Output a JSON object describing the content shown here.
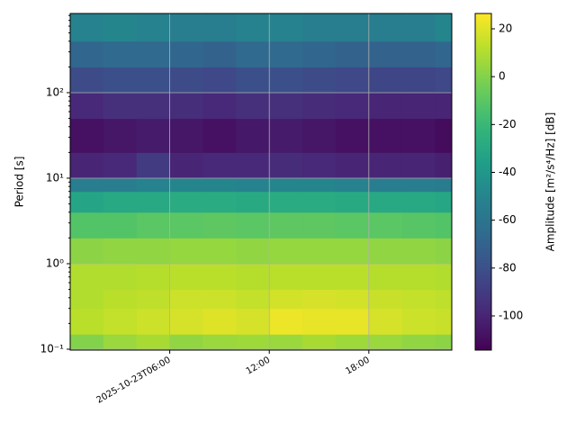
{
  "chart_data": {
    "type": "heatmap",
    "ylabel": "Period [s]",
    "colorbar_label": "Amplitude [m²/s⁴/Hz] [dB]",
    "colormap": "viridis",
    "xedges": [
      "2025-10-23T00:00",
      "2025-10-23T02:00",
      "2025-10-23T04:00",
      "2025-10-23T06:00",
      "2025-10-23T08:00",
      "2025-10-23T10:00",
      "2025-10-23T12:00",
      "2025-10-23T14:00",
      "2025-10-23T16:00",
      "2025-10-23T18:00",
      "2025-10-23T20:00",
      "2025-10-23T22:00",
      "2025-10-23T23:00"
    ],
    "yedges": [
      0.0976,
      0.15,
      0.3,
      0.5,
      1,
      2,
      4,
      7,
      10,
      20,
      50,
      100,
      200,
      400,
      843
    ],
    "values": [
      [
        0,
        5,
        8,
        3,
        5,
        6,
        5,
        8,
        6,
        5,
        3,
        2
      ],
      [
        12,
        14,
        16,
        18,
        20,
        18,
        23,
        22,
        22,
        18,
        16,
        15
      ],
      [
        10,
        12,
        13,
        16,
        16,
        14,
        17,
        18,
        17,
        15,
        14,
        13
      ],
      [
        10,
        10,
        11,
        12,
        12,
        11,
        12,
        12,
        12,
        11,
        11,
        10
      ],
      [
        2,
        3,
        3,
        4,
        4,
        3,
        4,
        4,
        4,
        3,
        3,
        2
      ],
      [
        -12,
        -12,
        -10,
        -10,
        -9,
        -10,
        -9,
        -9,
        -10,
        -10,
        -11,
        -12
      ],
      [
        -32,
        -30,
        -30,
        -28,
        -28,
        -29,
        -28,
        -28,
        -29,
        -30,
        -30,
        -31
      ],
      [
        -55,
        -55,
        -52,
        -50,
        -50,
        -52,
        -50,
        -50,
        -52,
        -54,
        -55,
        -56
      ],
      [
        -100,
        -98,
        -90,
        -100,
        -98,
        -98,
        -97,
        -98,
        -100,
        -100,
        -100,
        -102
      ],
      [
        -108,
        -106,
        -104,
        -106,
        -108,
        -105,
        -104,
        -106,
        -108,
        -108,
        -108,
        -110
      ],
      [
        -98,
        -95,
        -95,
        -96,
        -98,
        -95,
        -95,
        -97,
        -98,
        -100,
        -100,
        -100
      ],
      [
        -82,
        -80,
        -80,
        -82,
        -84,
        -80,
        -80,
        -82,
        -84,
        -85,
        -85,
        -84
      ],
      [
        -68,
        -66,
        -66,
        -68,
        -70,
        -66,
        -66,
        -68,
        -70,
        -70,
        -70,
        -68
      ],
      [
        -52,
        -50,
        -52,
        -54,
        -55,
        -52,
        -52,
        -54,
        -55,
        -55,
        -54,
        -50
      ]
    ],
    "xlim": [
      "2025-10-23T00:00",
      "2025-10-23T23:00"
    ],
    "xticks": [
      "2025-10-23T06:00",
      {
        "value": "2025-10-23T12:00",
        "label": "12:00"
      },
      {
        "value": "2025-10-23T18:00",
        "label": "18:00"
      }
    ],
    "ylim": [
      0.0976,
      843
    ],
    "yscale": "log",
    "yticks": [
      {
        "value": 0.1,
        "label": "10⁻¹"
      },
      {
        "value": 1,
        "label": "10⁰"
      },
      {
        "value": 10,
        "label": "10¹"
      },
      {
        "value": 100,
        "label": "10²"
      }
    ],
    "clim": [
      -114.3,
      26.4
    ],
    "cticks": [
      20,
      0,
      -20,
      -40,
      -60,
      -80,
      -100
    ],
    "grid": true
  }
}
